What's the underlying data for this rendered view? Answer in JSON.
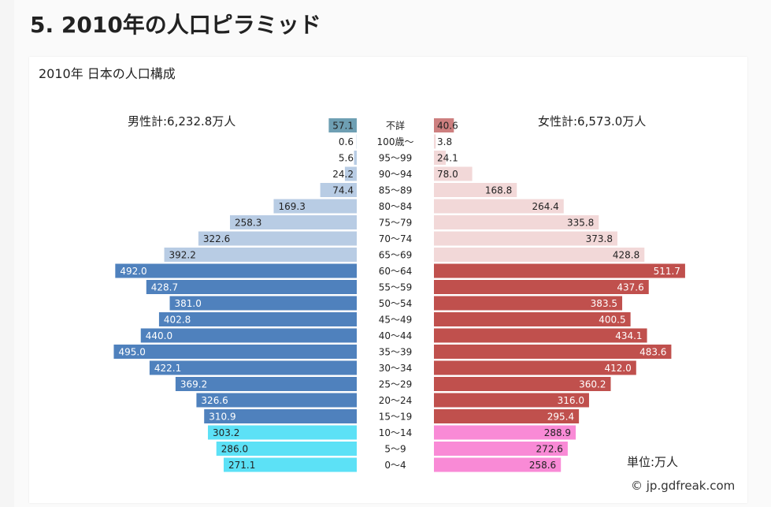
{
  "page": {
    "heading": "5. 2010年の人口ピラミッド"
  },
  "chart_panel": {
    "title": "2010年 日本の人口構成",
    "male_total_label": "男性計:6,232.8万人",
    "female_total_label": "女性計:6,573.0万人",
    "unit_label": "単位:万人",
    "copyright": "© jp.gdfreak.com"
  },
  "chart_data": {
    "type": "bar",
    "orientation": "horizontal-pyramid",
    "categories": [
      "不詳",
      "100歳〜",
      "95〜99",
      "90〜94",
      "85〜89",
      "80〜84",
      "75〜79",
      "70〜74",
      "65〜69",
      "60〜64",
      "55〜59",
      "50〜54",
      "45〜49",
      "40〜44",
      "35〜39",
      "30〜34",
      "25〜29",
      "20〜24",
      "15〜19",
      "10〜14",
      "5〜9",
      "0〜4"
    ],
    "series": [
      {
        "name": "男性",
        "values": [
          57.1,
          0.6,
          5.6,
          24.2,
          74.4,
          169.3,
          258.3,
          322.6,
          392.2,
          492.0,
          428.7,
          381.0,
          402.8,
          440.0,
          495.0,
          422.1,
          369.2,
          326.6,
          310.9,
          303.2,
          286.0,
          271.1
        ],
        "labels": [
          "57.1",
          "0.6",
          "5.6",
          "24.2",
          "74.4",
          "169.3",
          "258.3",
          "322.6",
          "392.2",
          "492.0",
          "428.7",
          "381.0",
          "402.8",
          "440.0",
          "495.0",
          "422.1",
          "369.2",
          "326.6",
          "310.9",
          "303.2",
          "286.0",
          "271.1"
        ]
      },
      {
        "name": "女性",
        "values": [
          40.6,
          3.8,
          24.1,
          78.0,
          168.8,
          264.4,
          335.8,
          373.8,
          428.8,
          511.7,
          437.6,
          383.5,
          400.5,
          434.1,
          483.6,
          412.0,
          360.2,
          316.0,
          295.4,
          288.9,
          272.6,
          258.6
        ],
        "labels": [
          "40.6",
          "3.8",
          "24.1",
          "78.0",
          "168.8",
          "264.4",
          "335.8",
          "373.8",
          "428.8",
          "511.7",
          "437.6",
          "383.5",
          "400.5",
          "434.1",
          "483.6",
          "412.0",
          "360.2",
          "316.0",
          "295.4",
          "288.9",
          "272.6",
          "258.6"
        ]
      }
    ],
    "xlim": [
      0,
      515
    ],
    "colors": {
      "male_unknown": "#6e9fb3",
      "male_elderly": "#b8cce4",
      "male_working": "#4f81bd",
      "male_youth": "#5ce1f6",
      "female_unknown": "#cd7f7f",
      "female_elderly": "#f2d8d8",
      "female_working": "#c0504d",
      "female_youth": "#f98ad6"
    }
  }
}
